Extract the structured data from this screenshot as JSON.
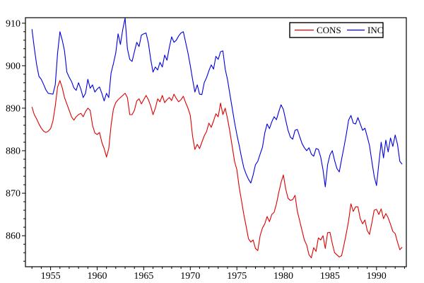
{
  "chart_data": {
    "type": "line",
    "title": "",
    "grid": "off",
    "legend": {
      "position": "top-right-inside",
      "border": "solid"
    },
    "x_axis": {
      "min": 1952.3,
      "max": 1993.2,
      "major_tick_start": 1955,
      "major_tick_step": 5,
      "major_tick_end": 1990,
      "minor_tick_step": 1,
      "tick_labels": [
        "1955",
        "1960",
        "1965",
        "1970",
        "1975",
        "1980",
        "1985",
        "1990"
      ]
    },
    "y_axis": {
      "min": 852.7,
      "max": 911.3,
      "major_tick_start": 860,
      "major_tick_step": 10,
      "major_tick_end": 910,
      "minor_tick_step": 2,
      "tick_labels": [
        "860",
        "870",
        "880",
        "890",
        "900",
        "910"
      ]
    },
    "x_start": 1953.0,
    "x_step": 0.25,
    "series": [
      {
        "name": "CONS",
        "color": "#dd0000",
        "values": [
          890.3,
          888.5,
          887.5,
          886.3,
          885.3,
          884.6,
          884.3,
          884.6,
          885.2,
          887.0,
          890.5,
          895.0,
          896.5,
          894.8,
          892.5,
          891.0,
          889.5,
          888.0,
          887.2,
          888.0,
          888.5,
          888.8,
          888.0,
          889.2,
          890.0,
          889.5,
          886.0,
          884.2,
          883.8,
          884.3,
          882.0,
          880.5,
          878.5,
          880.5,
          886.0,
          889.8,
          891.3,
          892.0,
          892.5,
          893.0,
          893.5,
          892.5,
          888.5,
          888.5,
          889.5,
          891.7,
          892.2,
          891.0,
          892.0,
          893.0,
          892.0,
          890.5,
          888.5,
          890.0,
          892.2,
          891.5,
          893.0,
          891.3,
          892.0,
          892.5,
          891.8,
          893.3,
          892.3,
          891.5,
          892.0,
          892.8,
          891.3,
          890.0,
          888.3,
          883.3,
          880.3,
          881.5,
          880.5,
          882.0,
          883.5,
          884.5,
          886.5,
          885.5,
          887.0,
          888.7,
          888.0,
          891.2,
          888.5,
          890.0,
          887.5,
          884.5,
          881.0,
          877.5,
          875.5,
          871.5,
          868.3,
          865.0,
          862.2,
          859.3,
          858.5,
          859.0,
          857.0,
          856.5,
          860.0,
          861.8,
          862.8,
          864.5,
          863.3,
          865.0,
          865.5,
          867.5,
          870.2,
          872.5,
          874.3,
          871.0,
          868.8,
          868.3,
          868.5,
          869.5,
          865.7,
          863.5,
          861.2,
          859.0,
          857.8,
          855.5,
          854.8,
          857.2,
          856.3,
          859.5,
          859.0,
          860.0,
          857.0,
          860.7,
          860.8,
          858.2,
          856.0,
          855.5,
          855.0,
          855.3,
          857.8,
          860.5,
          863.5,
          867.5,
          865.7,
          866.8,
          866.8,
          864.0,
          862.8,
          863.7,
          861.2,
          860.3,
          863.0,
          866.0,
          866.2,
          865.0,
          866.3,
          864.0,
          865.2,
          864.2,
          862.7,
          861.0,
          860.5,
          858.5,
          856.7,
          857.3
        ]
      },
      {
        "name": "INC",
        "color": "#0000dd",
        "values": [
          908.6,
          904.2,
          900.3,
          897.5,
          896.8,
          895.6,
          894.3,
          893.5,
          893.4,
          893.3,
          895.5,
          903.0,
          908.0,
          906.0,
          903.5,
          898.5,
          897.3,
          896.3,
          894.8,
          894.2,
          896.0,
          894.5,
          892.5,
          893.5,
          896.8,
          894.7,
          895.5,
          893.8,
          894.5,
          895.0,
          893.5,
          891.7,
          893.5,
          892.5,
          898.3,
          900.5,
          903.0,
          907.5,
          905.0,
          908.5,
          911.2,
          904.0,
          901.5,
          901.0,
          903.3,
          905.5,
          904.5,
          907.2,
          907.5,
          907.7,
          905.3,
          901.5,
          898.5,
          899.7,
          899.0,
          900.8,
          899.7,
          902.5,
          901.3,
          904.3,
          906.8,
          905.5,
          906.0,
          907.0,
          907.7,
          908.0,
          905.5,
          903.0,
          900.0,
          896.7,
          893.8,
          895.5,
          893.3,
          893.2,
          896.0,
          897.2,
          898.8,
          900.2,
          899.2,
          902.2,
          901.5,
          903.3,
          903.5,
          899.2,
          896.7,
          893.3,
          890.0,
          886.7,
          883.8,
          881.3,
          878.5,
          876.0,
          874.5,
          873.3,
          872.4,
          874.3,
          876.7,
          877.5,
          879.2,
          880.8,
          884.2,
          886.3,
          885.2,
          886.8,
          888.0,
          887.3,
          889.2,
          890.8,
          889.7,
          887.2,
          884.8,
          883.2,
          882.7,
          884.8,
          885.0,
          883.3,
          881.7,
          880.7,
          880.0,
          880.7,
          879.2,
          878.7,
          880.5,
          880.3,
          878.5,
          875.5,
          871.5,
          876.7,
          879.0,
          880.0,
          877.7,
          875.8,
          875.0,
          878.0,
          880.8,
          883.8,
          887.2,
          888.3,
          886.5,
          886.3,
          887.8,
          886.3,
          884.8,
          885.3,
          883.3,
          881.2,
          877.5,
          874.0,
          871.8,
          877.0,
          882.0,
          878.3,
          882.5,
          879.7,
          883.0,
          881.0,
          883.7,
          881.5,
          877.5,
          876.8
        ]
      }
    ]
  },
  "colors": {
    "background": "#ffffff",
    "axis": "#000000",
    "text": "#000000"
  }
}
